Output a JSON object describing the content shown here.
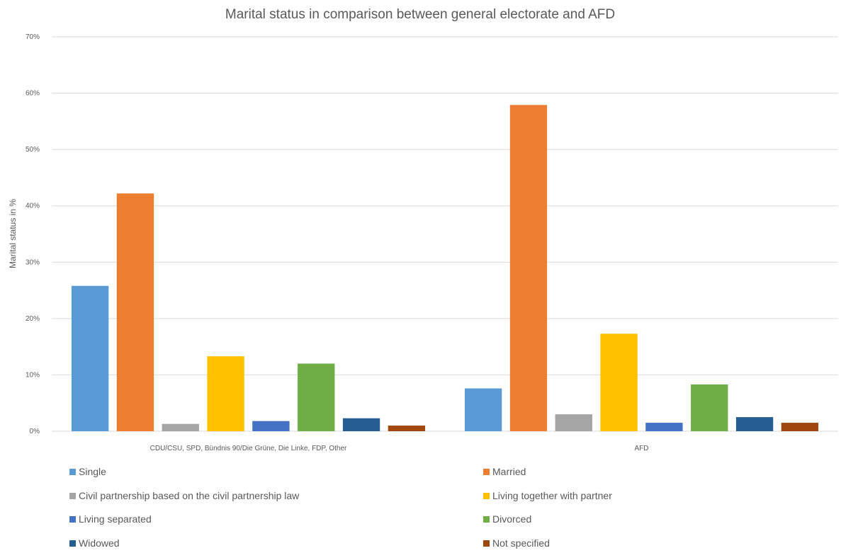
{
  "chart_data": {
    "type": "bar",
    "title": "Marital status in comparison between general electorate and AFD",
    "xlabel": "",
    "ylabel": "Marital status in %",
    "ylim": [
      0,
      70
    ],
    "yticks": [
      "0%",
      "10%",
      "20%",
      "30%",
      "40%",
      "50%",
      "60%",
      "70%"
    ],
    "grid": true,
    "legend_position": "bottom",
    "categories": [
      "CDU/CSU, SPD, Bündnis 90/Die Grüne, Die Linke, FDP, Other",
      "AFD"
    ],
    "series": [
      {
        "name": "Single",
        "color": "#5b9bd5",
        "values": [
          25.8,
          7.6
        ]
      },
      {
        "name": "Married",
        "color": "#ed7d31",
        "values": [
          42.2,
          57.9
        ]
      },
      {
        "name": "Civil partnership based on the civil partnership law",
        "color": "#a5a5a5",
        "values": [
          1.3,
          3.0
        ]
      },
      {
        "name": "Living together with partner",
        "color": "#ffc000",
        "values": [
          13.3,
          17.3
        ]
      },
      {
        "name": "Living separated",
        "color": "#4472c4",
        "values": [
          1.8,
          1.5
        ]
      },
      {
        "name": "Divorced",
        "color": "#70ad47",
        "values": [
          12.0,
          8.3
        ]
      },
      {
        "name": "Widowed",
        "color": "#255e91",
        "values": [
          2.3,
          2.5
        ]
      },
      {
        "name": "Not specified",
        "color": "#9e480e",
        "values": [
          1.0,
          1.5
        ]
      }
    ]
  }
}
